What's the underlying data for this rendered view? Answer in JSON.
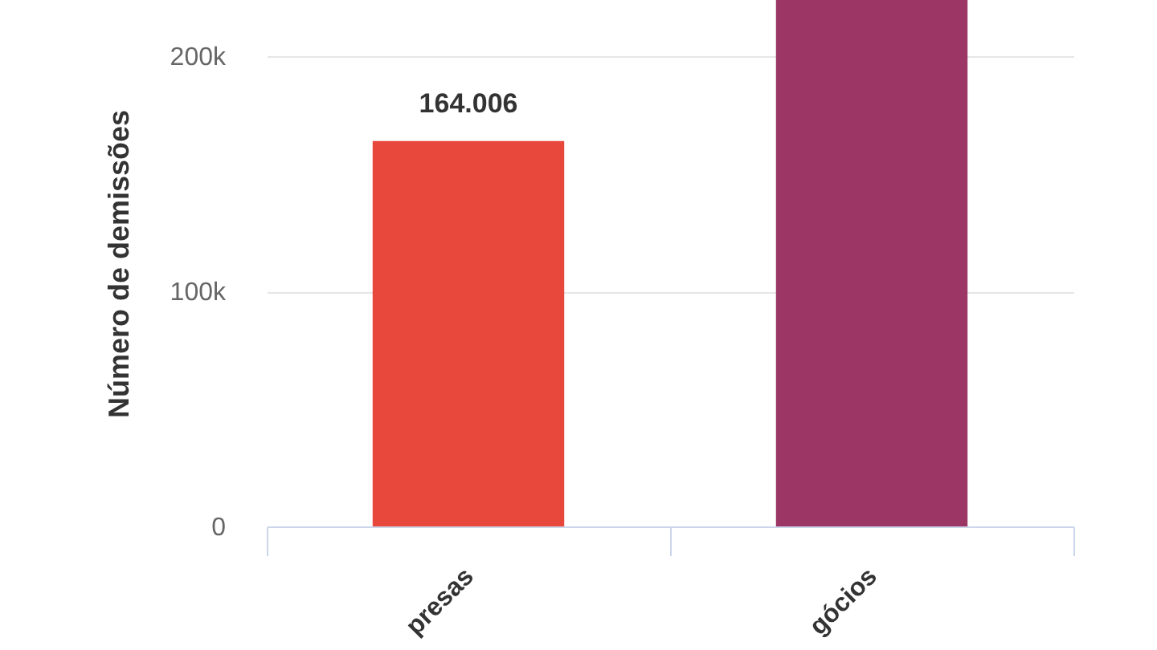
{
  "chart_data": {
    "type": "bar",
    "categories": [
      "presas",
      "gócios"
    ],
    "values": [
      164006,
      224000
    ],
    "colors": [
      "#e8473c",
      "#9c3765"
    ],
    "ylabel": "Número de demissões",
    "ylim": [
      0,
      224000
    ],
    "yticks": [
      0,
      {
        "value": 100000,
        "label": "100k"
      },
      {
        "value": 200000,
        "label": "200k"
      }
    ],
    "value_labels": [
      "164.006",
      null
    ],
    "grid": "y"
  }
}
